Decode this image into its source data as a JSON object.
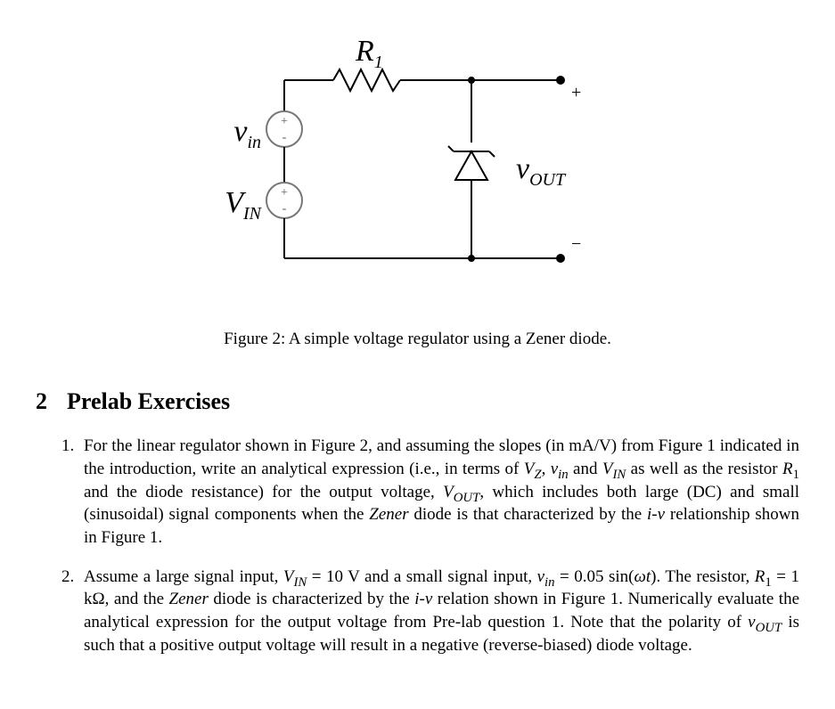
{
  "figure": {
    "caption": "Figure 2: A simple voltage regulator using a Zener diode.",
    "labels": {
      "R1_main": "R",
      "R1_sub": "1",
      "vin_main": "v",
      "vin_sub": "in",
      "VIN_main": "V",
      "VIN_sub": "IN",
      "VOUT_main": "v",
      "VOUT_sub": "OUT",
      "plus": "+",
      "minus": "−"
    },
    "style": {
      "stroke": "#000000",
      "stroke_width": 2,
      "source_outline": "#777777",
      "background": "#ffffff"
    }
  },
  "section": {
    "number": "2",
    "title": "Prelab Exercises"
  },
  "exercises": [
    {
      "html": "For the linear regulator shown in Figure 2, and assuming the slopes (in mA/V) from Figure 1 indicated in the introduction, write an analytical expression (i.e., in terms of <span class='it'>V<sub>Z</sub></span>, <span class='it'>v<sub>in</sub></span> and <span class='it'>V<sub>IN</sub></span> as well as the resistor <span class='it'>R</span><sub>1</sub> and the diode resistance) for the output voltage, <span class='it'>V<sub>OUT</sub></span>, which includes both large (DC) and small (sinusoidal) signal components when the <span class='it'>Zener</span> diode is that characterized by the <span class='it'>i-v</span> relationship shown in Figure 1."
    },
    {
      "html": "Assume a large signal input, <span class='it'>V<sub>IN</sub></span> = 10 V and a small signal input, <span class='it'>v<sub>in</sub></span> = 0.05 sin(<span class='it'>ωt</span>). The resistor, <span class='it'>R</span><sub>1</sub> = 1 kΩ, and the <span class='it'>Zener</span> diode is characterized by the <span class='it'>i-v</span> relation shown in Figure 1. Numerically evaluate the analytical expression for the output voltage from Pre-lab question 1. Note that the polarity of <span class='it'>v<sub>OUT</sub></span> is such that a positive output voltage will result in a negative (reverse-biased) diode voltage."
    }
  ]
}
